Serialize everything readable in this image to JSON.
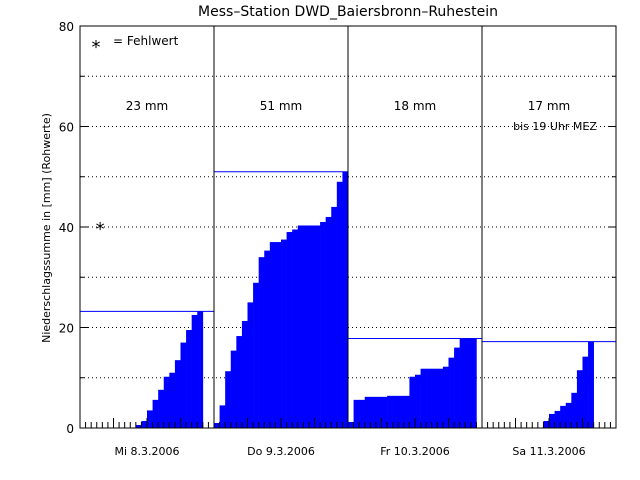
{
  "chart_data": {
    "type": "area",
    "title": "Mess–Station DWD_Baiersbronn–Ruhestein",
    "ylabel": "Niederschlagssumme in [mm] (Rohwerte)",
    "xlabel": "",
    "ylim": [
      0,
      80
    ],
    "yticks": [
      0,
      20,
      40,
      60,
      80
    ],
    "grid": "dotted horizontal every 10 mm",
    "legend": {
      "symbol": "*",
      "label": "= Fehlwert",
      "placement": "top-left"
    },
    "bar_color": "#0000ff",
    "missing_marker": {
      "day_index": 0,
      "y": 40
    },
    "days": [
      {
        "label": "Mi 8.3.2006",
        "total_label": "23 mm",
        "note": "",
        "total": 23.2,
        "hourly": [
          0,
          0,
          0,
          0,
          0,
          0,
          0,
          0,
          0,
          0,
          0.6,
          1.4,
          3.5,
          5.6,
          7.6,
          10.2,
          11.0,
          13.5,
          17.0,
          19.5,
          22.5,
          23.2
        ]
      },
      {
        "label": "Do 9.3.2006",
        "total_label": "51 mm",
        "note": "",
        "total": 51.0,
        "hourly": [
          1.0,
          4.5,
          11.3,
          15.4,
          18.3,
          21.3,
          25.0,
          28.9,
          34.0,
          35.3,
          37.0,
          37.0,
          37.5,
          39.0,
          39.5,
          40.3,
          40.3,
          40.3,
          40.3,
          41.0,
          42.0,
          44.0,
          49.0,
          51.0
        ]
      },
      {
        "label": "Fr 10.3.2006",
        "total_label": "18 mm",
        "note": "",
        "total": 17.8,
        "hourly": [
          1.2,
          5.6,
          5.6,
          6.2,
          6.2,
          6.2,
          6.2,
          6.4,
          6.4,
          6.4,
          6.4,
          10.2,
          10.6,
          11.8,
          11.8,
          11.8,
          11.8,
          12.2,
          14.0,
          16.0,
          17.8,
          17.8,
          17.8
        ]
      },
      {
        "label": "Sa 11.3.2006",
        "total_label": "17 mm",
        "note": "bis 19 Uhr MEZ",
        "total": 17.2,
        "hourly": [
          0,
          0,
          0,
          0,
          0,
          0,
          0,
          0,
          0,
          0,
          0,
          1.4,
          2.8,
          3.4,
          4.4,
          5.0,
          7.0,
          11.5,
          14.2,
          17.2
        ]
      }
    ]
  }
}
